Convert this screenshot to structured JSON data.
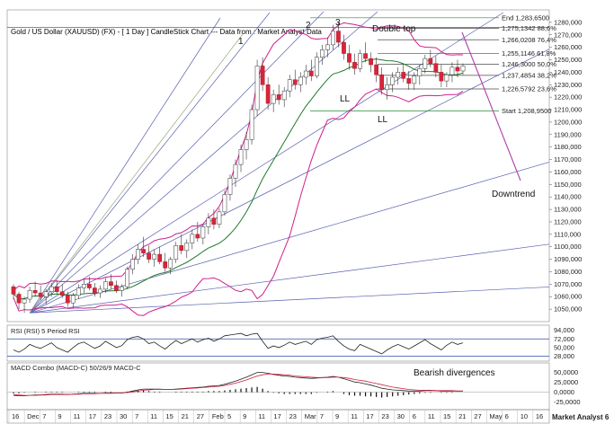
{
  "chart_data": {
    "type": "candlestick",
    "title": "Gold / US Dollar (XAUUSD) (FX) -  [ 1 Day ] CandleStick Chart --- Data from : Market Analyst Data",
    "watermark": "Market Analyst 6",
    "x_ticks": [
      "16",
      "Dec",
      "7",
      "9",
      "11",
      "17",
      "23",
      "30",
      "7",
      "11",
      "15",
      "21",
      "27",
      "Feb",
      "5",
      "9",
      "11",
      "17",
      "23",
      "Mar",
      "7",
      "9",
      "11",
      "17",
      "23",
      "30",
      "6",
      "11",
      "15",
      "21",
      "27",
      "May",
      "6",
      "10",
      "16"
    ],
    "price_axis": {
      "ylim": [
        1040,
        1290
      ],
      "ticks": [
        "1050,000",
        "1060,000",
        "1070,000",
        "1080,000",
        "1090,000",
        "1100,000",
        "1110,000",
        "1120,000",
        "1130,000",
        "1140,000",
        "1150,000",
        "1160,000",
        "1170,000",
        "1180,000",
        "1190,000",
        "1200,000",
        "1210,000",
        "1220,000",
        "1230,000",
        "1240,000",
        "1250,000",
        "1260,000",
        "1270,000",
        "1280,000"
      ]
    },
    "candles": [
      [
        1068,
        1070,
        1058,
        1062
      ],
      [
        1062,
        1064,
        1050,
        1055
      ],
      [
        1055,
        1060,
        1047,
        1058
      ],
      [
        1058,
        1068,
        1055,
        1065
      ],
      [
        1065,
        1072,
        1060,
        1063
      ],
      [
        1063,
        1069,
        1057,
        1060
      ],
      [
        1060,
        1066,
        1054,
        1064
      ],
      [
        1064,
        1071,
        1060,
        1068
      ],
      [
        1068,
        1073,
        1062,
        1064
      ],
      [
        1064,
        1070,
        1059,
        1061
      ],
      [
        1061,
        1064,
        1052,
        1055
      ],
      [
        1055,
        1063,
        1051,
        1061
      ],
      [
        1061,
        1070,
        1058,
        1067
      ],
      [
        1067,
        1074,
        1063,
        1070
      ],
      [
        1070,
        1076,
        1065,
        1067
      ],
      [
        1067,
        1071,
        1060,
        1063
      ],
      [
        1063,
        1069,
        1059,
        1066
      ],
      [
        1066,
        1075,
        1063,
        1072
      ],
      [
        1072,
        1078,
        1066,
        1069
      ],
      [
        1069,
        1073,
        1063,
        1065
      ],
      [
        1065,
        1070,
        1060,
        1068
      ],
      [
        1068,
        1084,
        1066,
        1082
      ],
      [
        1082,
        1094,
        1078,
        1090
      ],
      [
        1090,
        1102,
        1086,
        1098
      ],
      [
        1098,
        1108,
        1092,
        1095
      ],
      [
        1095,
        1101,
        1087,
        1090
      ],
      [
        1090,
        1098,
        1084,
        1094
      ],
      [
        1094,
        1100,
        1086,
        1088
      ],
      [
        1088,
        1095,
        1080,
        1083
      ],
      [
        1083,
        1092,
        1078,
        1090
      ],
      [
        1090,
        1104,
        1087,
        1101
      ],
      [
        1101,
        1110,
        1094,
        1097
      ],
      [
        1097,
        1106,
        1091,
        1103
      ],
      [
        1103,
        1114,
        1098,
        1110
      ],
      [
        1110,
        1120,
        1104,
        1107
      ],
      [
        1107,
        1118,
        1102,
        1116
      ],
      [
        1116,
        1127,
        1110,
        1123
      ],
      [
        1123,
        1130,
        1114,
        1118
      ],
      [
        1118,
        1131,
        1115,
        1128
      ],
      [
        1128,
        1145,
        1125,
        1142
      ],
      [
        1142,
        1158,
        1137,
        1155
      ],
      [
        1155,
        1170,
        1148,
        1166
      ],
      [
        1166,
        1182,
        1160,
        1178
      ],
      [
        1178,
        1192,
        1170,
        1186
      ],
      [
        1186,
        1214,
        1182,
        1210
      ],
      [
        1210,
        1250,
        1205,
        1245
      ],
      [
        1245,
        1252,
        1225,
        1230
      ],
      [
        1230,
        1236,
        1210,
        1215
      ],
      [
        1215,
        1226,
        1208,
        1222
      ],
      [
        1222,
        1230,
        1214,
        1218
      ],
      [
        1218,
        1228,
        1212,
        1225
      ],
      [
        1225,
        1238,
        1220,
        1234
      ],
      [
        1234,
        1242,
        1226,
        1230
      ],
      [
        1230,
        1240,
        1224,
        1236
      ],
      [
        1236,
        1246,
        1230,
        1241
      ],
      [
        1241,
        1250,
        1233,
        1237
      ],
      [
        1237,
        1256,
        1235,
        1252
      ],
      [
        1252,
        1262,
        1246,
        1258
      ],
      [
        1258,
        1268,
        1252,
        1262
      ],
      [
        1262,
        1278,
        1258,
        1273
      ],
      [
        1273,
        1280,
        1260,
        1264
      ],
      [
        1264,
        1270,
        1250,
        1255
      ],
      [
        1255,
        1262,
        1242,
        1248
      ],
      [
        1248,
        1255,
        1238,
        1243
      ],
      [
        1243,
        1258,
        1240,
        1255
      ],
      [
        1255,
        1264,
        1248,
        1251
      ],
      [
        1251,
        1256,
        1240,
        1246
      ],
      [
        1246,
        1252,
        1232,
        1238
      ],
      [
        1238,
        1244,
        1222,
        1226
      ],
      [
        1226,
        1236,
        1218,
        1230
      ],
      [
        1230,
        1240,
        1224,
        1236
      ],
      [
        1236,
        1244,
        1230,
        1240
      ],
      [
        1240,
        1246,
        1232,
        1235
      ],
      [
        1235,
        1241,
        1226,
        1231
      ],
      [
        1231,
        1240,
        1226,
        1237
      ],
      [
        1237,
        1246,
        1230,
        1243
      ],
      [
        1243,
        1254,
        1239,
        1251
      ],
      [
        1251,
        1258,
        1244,
        1247
      ],
      [
        1247,
        1253,
        1236,
        1240
      ],
      [
        1240,
        1246,
        1228,
        1233
      ],
      [
        1233,
        1240,
        1228,
        1238
      ],
      [
        1238,
        1248,
        1232,
        1244
      ],
      [
        1244,
        1250,
        1236,
        1241
      ],
      [
        1241,
        1247,
        1238,
        1245
      ]
    ],
    "fib_levels": [
      {
        "label": "End 1,283,6500",
        "value": 1283.65
      },
      {
        "label": "1,275,1342 88,6%",
        "value": 1275.13
      },
      {
        "label": "1,266,0208 76,4%",
        "value": 1266.02
      },
      {
        "label": "1,255,1146 61,8%",
        "value": 1255.11
      },
      {
        "label": "1,246,3000 50,0%",
        "value": 1246.3
      },
      {
        "label": "1,237,4854 38,2%",
        "value": 1237.49
      },
      {
        "label": "1,226,5792 23,6%",
        "value": 1226.58
      },
      {
        "label": "Start 1,208,9500",
        "value": 1208.95
      }
    ],
    "annotations": {
      "wave_1": "1",
      "wave_2": "2",
      "wave_3": "3",
      "double_top": "Double top",
      "ll_1": "LL",
      "ll_2": "LL",
      "downtrend": "Downtrend"
    },
    "rsi": {
      "title": "RSI (RSI) 5 Period RSI",
      "ticks": [
        "94,000",
        "72,000",
        "50,000",
        "28,000"
      ],
      "ylim": [
        20,
        100
      ],
      "levels": [
        72,
        28
      ],
      "values": [
        44,
        38,
        46,
        58,
        52,
        48,
        55,
        62,
        50,
        44,
        38,
        50,
        60,
        64,
        56,
        48,
        54,
        66,
        58,
        50,
        55,
        70,
        76,
        78,
        72,
        60,
        64,
        54,
        46,
        58,
        68,
        60,
        66,
        72,
        64,
        70,
        74,
        66,
        72,
        80,
        82,
        84,
        86,
        80,
        84,
        86,
        66,
        48,
        54,
        50,
        56,
        64,
        58,
        62,
        66,
        58,
        70,
        74,
        76,
        80,
        66,
        54,
        46,
        42,
        58,
        52,
        46,
        40,
        34,
        44,
        52,
        58,
        52,
        46,
        54,
        62,
        70,
        60,
        52,
        44,
        56,
        64,
        58,
        62
      ]
    },
    "macd": {
      "title": "MACD Combo (MACD-C) 50/26/9 MACD-C",
      "ticks": [
        "50,0000",
        "25,0000",
        "0,0000",
        "-25,0000"
      ],
      "ylim": [
        -35,
        65
      ],
      "macd": [
        -8,
        -9,
        -9,
        -8,
        -7,
        -7,
        -6,
        -5,
        -5,
        -5,
        -6,
        -5,
        -4,
        -3,
        -3,
        -3,
        -3,
        -2,
        -2,
        -2,
        -2,
        0,
        3,
        6,
        8,
        8,
        8,
        8,
        7,
        7,
        8,
        9,
        10,
        11,
        12,
        13,
        15,
        16,
        17,
        20,
        24,
        28,
        33,
        38,
        44,
        50,
        50,
        48,
        45,
        43,
        41,
        40,
        38,
        37,
        36,
        35,
        36,
        37,
        38,
        40,
        38,
        34,
        30,
        26,
        24,
        21,
        18,
        14,
        10,
        8,
        6,
        5,
        4,
        3,
        3,
        3,
        4,
        4,
        4,
        3,
        3,
        3,
        3,
        3
      ],
      "signal": [
        -6,
        -7,
        -8,
        -8,
        -8,
        -7,
        -7,
        -6,
        -6,
        -6,
        -6,
        -5,
        -5,
        -4,
        -4,
        -4,
        -3,
        -3,
        -3,
        -2,
        -2,
        -1,
        1,
        3,
        5,
        6,
        7,
        7,
        7,
        7,
        7,
        8,
        9,
        10,
        11,
        12,
        13,
        14,
        15,
        17,
        20,
        23,
        27,
        31,
        36,
        41,
        44,
        46,
        46,
        45,
        44,
        43,
        41,
        40,
        39,
        38,
        37,
        37,
        37,
        38,
        38,
        37,
        35,
        32,
        30,
        28,
        25,
        22,
        19,
        16,
        13,
        11,
        9,
        7,
        6,
        5,
        5,
        5,
        4,
        4,
        4,
        4,
        3,
        3
      ],
      "annotation": "Bearish divergences"
    }
  }
}
